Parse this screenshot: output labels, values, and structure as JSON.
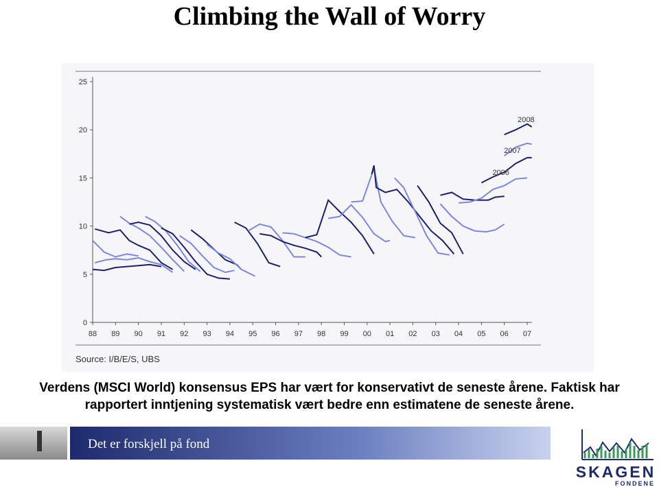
{
  "header": {
    "title": "Climbing the Wall of Worry"
  },
  "chart_data": {
    "type": "line",
    "xlim": [
      1987.9,
      2007.5
    ],
    "xticks": [
      {
        "value": 1988,
        "label": "88"
      },
      {
        "value": 1989,
        "label": "89"
      },
      {
        "value": 1990,
        "label": "90"
      },
      {
        "value": 1991,
        "label": "91"
      },
      {
        "value": 1992,
        "label": "92"
      },
      {
        "value": 1993,
        "label": "93"
      },
      {
        "value": 1994,
        "label": "94"
      },
      {
        "value": 1995,
        "label": "95"
      },
      {
        "value": 1996,
        "label": "96"
      },
      {
        "value": 1997,
        "label": "97"
      },
      {
        "value": 1998,
        "label": "98"
      },
      {
        "value": 1999,
        "label": "99"
      },
      {
        "value": 2000,
        "label": "00"
      },
      {
        "value": 2001,
        "label": "01"
      },
      {
        "value": 2002,
        "label": "02"
      },
      {
        "value": 2003,
        "label": "03"
      },
      {
        "value": 2004,
        "label": "04"
      },
      {
        "value": 2005,
        "label": "05"
      },
      {
        "value": 2006,
        "label": "06"
      },
      {
        "value": 2007,
        "label": "07"
      }
    ],
    "ylim": [
      0,
      25
    ],
    "yticks": [
      0,
      5,
      10,
      15,
      20,
      25
    ],
    "annotations": [
      "2006",
      "2007",
      "2008"
    ],
    "source": "Source: I/B/E/S, UBS",
    "series": [
      {
        "color": "#1c1f6b",
        "x": [
          1988.0,
          1988.5,
          1989,
          1989.5,
          1990,
          1990.5,
          1991
        ],
        "values": [
          5.5,
          5.4,
          5.7,
          5.8,
          5.9,
          6.0,
          5.8
        ]
      },
      {
        "color": "#7b86e0",
        "x": [
          1988.1,
          1988.6,
          1989,
          1989.5,
          1990,
          1990.5,
          1991,
          1991.5
        ],
        "values": [
          6.2,
          6.5,
          6.6,
          6.5,
          6.7,
          6.3,
          6.0,
          5.2
        ]
      },
      {
        "color": "#7b86e0",
        "x": [
          1988.0,
          1988.5,
          1989,
          1989.5,
          1990
        ],
        "values": [
          8.5,
          7.3,
          6.8,
          7.1,
          6.9
        ]
      },
      {
        "color": "#1c1f6b",
        "x": [
          1988.1,
          1988.7,
          1989.2,
          1989.6,
          1990,
          1990.5,
          1991,
          1991.5
        ],
        "values": [
          9.7,
          9.3,
          9.6,
          8.5,
          8.0,
          7.5,
          6.2,
          5.5
        ]
      },
      {
        "color": "#7b86e0",
        "x": [
          1989.2,
          1989.6,
          1990,
          1990.5,
          1991,
          1991.5,
          1992
        ],
        "values": [
          11.0,
          10.3,
          9.8,
          9.0,
          7.8,
          6.5,
          5.3
        ]
      },
      {
        "color": "#1c1f6b",
        "x": [
          1989.6,
          1990,
          1990.5,
          1991,
          1991.5,
          1992,
          1992.5
        ],
        "values": [
          10.2,
          10.4,
          10.1,
          9.0,
          7.5,
          6.3,
          5.5
        ]
      },
      {
        "color": "#7b86e0",
        "x": [
          1990.3,
          1990.7,
          1991.2,
          1991.7,
          1992.2,
          1992.7
        ],
        "values": [
          11.0,
          10.5,
          9.5,
          8.0,
          6.3,
          5.3
        ]
      },
      {
        "color": "#1c1f6b",
        "x": [
          1991.0,
          1991.5,
          1992,
          1992.5,
          1993,
          1993.5,
          1994
        ],
        "values": [
          9.8,
          9.2,
          7.8,
          6.3,
          5.0,
          4.6,
          4.5
        ]
      },
      {
        "color": "#7b86e0",
        "x": [
          1991.8,
          1992.3,
          1992.8,
          1993.3,
          1993.8,
          1994.2
        ],
        "values": [
          9.0,
          8.2,
          6.9,
          5.7,
          5.2,
          5.4
        ]
      },
      {
        "color": "#1c1f6b",
        "x": [
          1992.3,
          1992.8,
          1993.3,
          1993.8,
          1994.3,
          1994.5
        ],
        "values": [
          9.6,
          8.7,
          7.6,
          6.5,
          6.0,
          5.5
        ]
      },
      {
        "color": "#7b86e0",
        "x": [
          1993,
          1993.5,
          1994,
          1994.5,
          1995.1
        ],
        "values": [
          8.1,
          7.2,
          6.6,
          5.5,
          4.8
        ]
      },
      {
        "color": "#1c1f6b",
        "x": [
          1994.2,
          1994.7,
          1995.2,
          1995.7,
          1996.2
        ],
        "values": [
          10.4,
          9.8,
          8.2,
          6.2,
          5.8
        ]
      },
      {
        "color": "#7b86e0",
        "x": [
          1994.8,
          1995.3,
          1995.8,
          1996.3,
          1996.8,
          1997.3
        ],
        "values": [
          9.5,
          10.2,
          9.9,
          8.5,
          6.8,
          6.8
        ]
      },
      {
        "color": "#1c1f6b",
        "x": [
          1995.3,
          1995.8,
          1996.3,
          1996.8,
          1997.3,
          1997.8,
          1998
        ],
        "values": [
          9.2,
          9.0,
          8.4,
          8.0,
          7.7,
          7.3,
          6.8
        ]
      },
      {
        "color": "#7b86e0",
        "x": [
          1996.3,
          1996.8,
          1997.3,
          1997.8,
          1998.3,
          1998.8,
          1999.3
        ],
        "values": [
          9.3,
          9.2,
          8.8,
          8.4,
          7.8,
          7.0,
          6.8
        ]
      },
      {
        "color": "#1c1f6b",
        "x": [
          1997.3,
          1997.8,
          1998.3,
          1998.8,
          1999.3,
          1999.8,
          2000.3
        ],
        "values": [
          8.8,
          9.1,
          12.7,
          11.5,
          10.4,
          9.0,
          7.1
        ]
      },
      {
        "color": "#7b86e0",
        "x": [
          1998.3,
          1998.8,
          1999.3,
          1999.8,
          2000.3,
          2000.8,
          2001
        ],
        "values": [
          10.8,
          11.0,
          12.2,
          10.9,
          9.2,
          8.4,
          8.5
        ]
      },
      {
        "color": "#7b86e0",
        "x": [
          1999.3,
          1999.8,
          2000.3,
          2000.6,
          2001.1,
          2001.6,
          2002.1
        ],
        "values": [
          12.5,
          12.6,
          16.0,
          12.5,
          10.5,
          9.0,
          8.8
        ]
      },
      {
        "color": "#1c1f6b",
        "x": [
          2000.2,
          2000.3,
          2000.4,
          2000.8,
          2001.3,
          2001.8,
          2002.3,
          2002.8,
          2003.3,
          2003.8
        ],
        "values": [
          15.4,
          16.3,
          14.0,
          13.5,
          13.8,
          12.5,
          11.0,
          9.5,
          8.5,
          7.1
        ]
      },
      {
        "color": "#7b86e0",
        "x": [
          2001.2,
          2001.6,
          2002.1,
          2002.6,
          2003.1,
          2003.6
        ],
        "values": [
          15.0,
          14.0,
          11.5,
          9.0,
          7.2,
          7.0
        ]
      },
      {
        "color": "#1c1f6b",
        "x": [
          2002.2,
          2002.7,
          2003.2,
          2003.7,
          2004.2
        ],
        "values": [
          14.2,
          12.5,
          10.3,
          9.3,
          7.1
        ]
      },
      {
        "color": "#7b86e0",
        "x": [
          2003.2,
          2003.7,
          2004.2,
          2004.7,
          2005.2,
          2005.6,
          2006
        ],
        "values": [
          12.3,
          11.0,
          10.0,
          9.5,
          9.4,
          9.6,
          10.2
        ]
      },
      {
        "color": "#1c1f6b",
        "x": [
          2003.2,
          2003.7,
          2004.2,
          2004.7,
          2005.3,
          2005.6,
          2006
        ],
        "values": [
          13.2,
          13.5,
          12.8,
          12.7,
          12.7,
          13.0,
          13.1
        ]
      },
      {
        "color": "#7b86e0",
        "x": [
          2004,
          2004.5,
          2005,
          2005.5,
          2006,
          2006.5,
          2007
        ],
        "values": [
          12.4,
          12.5,
          12.9,
          13.8,
          14.2,
          14.9,
          15.0
        ]
      },
      {
        "color": "#1c1f6b",
        "x": [
          2005,
          2005.5,
          2006,
          2006.5,
          2007,
          2007.2
        ],
        "values": [
          14.5,
          15.1,
          15.6,
          16.5,
          17.1,
          17.1
        ]
      },
      {
        "color": "#7b86e0",
        "x": [
          2006,
          2006.5,
          2007,
          2007.2
        ],
        "values": [
          17.3,
          18.2,
          18.6,
          18.5
        ]
      },
      {
        "color": "#1c1f6b",
        "x": [
          2006,
          2006.5,
          2007,
          2007.2
        ],
        "values": [
          19.5,
          20.0,
          20.6,
          20.3
        ]
      }
    ]
  },
  "caption": {
    "lines": [
      "Verdens (MSCI World) konsensus EPS har vært for konservativt de seneste årene. Faktisk har",
      "rapportert inntjening systematisk vært bedre enn estimatene de seneste årene."
    ]
  },
  "footer": {
    "banner": "Det er forskjell på fond",
    "logo": "SKAGEN",
    "logo_sub": "FONDENE"
  }
}
